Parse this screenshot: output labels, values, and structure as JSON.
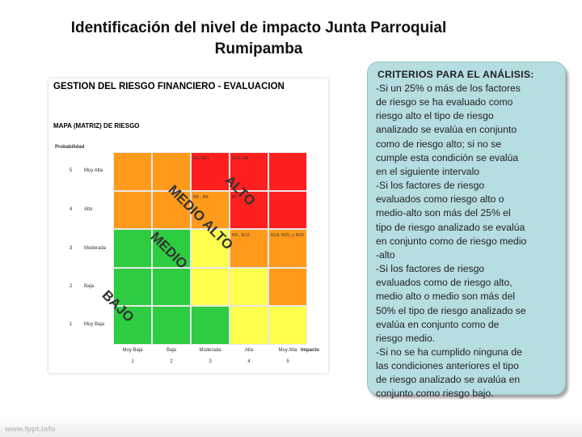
{
  "slide": {
    "title_line1": "Identificación del nivel de impacto Junta Parroquial",
    "title_line2": "Rumipamba"
  },
  "matrix": {
    "panel_title": "GESTION DEL RIESGO FINANCIERO - EVALUACION",
    "map_title": "MAPA (MATRIZ) DE RIESGO",
    "probability_header": "Probabilidad",
    "impact_header": "Impacto",
    "rows": [
      {
        "num": "5",
        "label": "Muy Alta"
      },
      {
        "num": "4",
        "label": "Alto"
      },
      {
        "num": "3",
        "label": "Moderada"
      },
      {
        "num": "2",
        "label": "Baja"
      },
      {
        "num": "1",
        "label": "Muy Baja"
      }
    ],
    "columns": [
      {
        "num": "1",
        "label": "Muy Baja"
      },
      {
        "num": "2",
        "label": "Baja"
      },
      {
        "num": "3",
        "label": "Moderada"
      },
      {
        "num": "4",
        "label": "Alta"
      },
      {
        "num": "5",
        "label": "Muy Alta"
      }
    ],
    "cell_texts": {
      "r5c3": "R1, R11",
      "r5c4": "R10, R8",
      "r4c3": "R5 , R6",
      "r4c4": "R7",
      "r3c4": "R9 , R12",
      "r3c5": "R14, R15, y R20"
    },
    "zone_labels": {
      "alto": "ALTO",
      "medio_alto": "MEDIO ALTO",
      "medio": "MEDIO",
      "bajo": "BAJO"
    },
    "colors": {
      "red": "#ff1f1f",
      "orange": "#ff9a1c",
      "yellow": "#ffff4d",
      "green": "#2ecc40"
    }
  },
  "criteria": {
    "title": "CRITERIOS PARA EL ANÁLISIS:",
    "lines": [
      "-Si un 25% o más de los factores",
      "de riesgo se ha evaluado como",
      "riesgo alto el tipo de riesgo",
      "analizado se evalúa en conjunto",
      "como de riesgo alto; si no se",
      "cumple esta condición se evalúa",
      "en el siguiente intervalo",
      "-Si los factores de riesgo",
      "evaluados como riesgo alto o",
      "medio-alto son más del 25% el",
      "tipo de riesgo analizado se evalúa",
      "en conjunto como de riesgo medio",
      "-alto",
      "-Si los factores de riesgo",
      "evaluados como de riesgo alto,",
      "medio alto o medio son más del",
      "50% el tipo de riesgo analizado se",
      "evalúa en conjunto como de",
      "riesgo medio.",
      "-Si no se ha cumplido ninguna de",
      "las condiciones anteriores el tipo",
      "de riesgo analizado se avalúa en",
      "conjunto como riesgo bajo."
    ]
  },
  "footer": {
    "logo_text": "www.fppt.info"
  }
}
